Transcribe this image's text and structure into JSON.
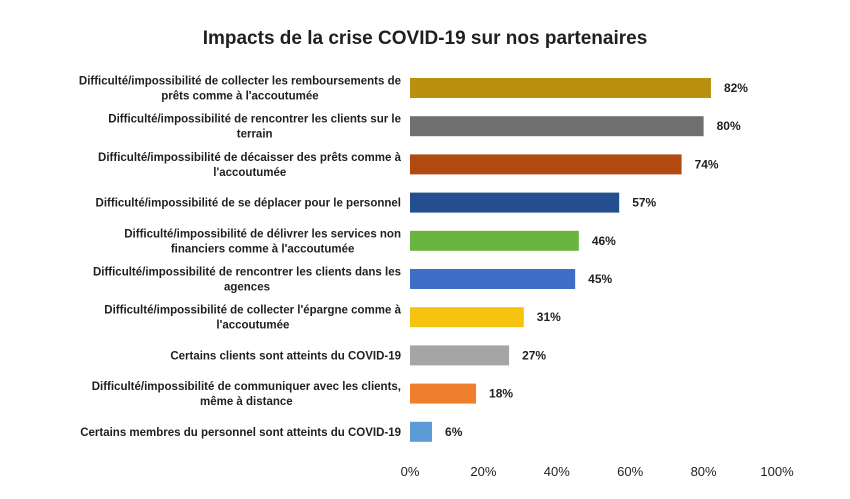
{
  "chart_data": {
    "type": "bar",
    "orientation": "horizontal",
    "title": "Impacts de la crise COVID-19 sur nos partenaires",
    "categories": [
      [
        "Difficulté/impossibilité de collecter les remboursements de",
        "prêts comme à l'accoutumée"
      ],
      [
        "Difficulté/impossibilité de rencontrer les clients sur le",
        "terrain"
      ],
      [
        "Difficulté/impossibilité de décaisser des prêts comme à",
        "l'accoutumée"
      ],
      [
        "Difficulté/impossibilité de se déplacer pour le personnel"
      ],
      [
        "Difficulté/impossibilité de délivrer les services non",
        "financiers comme à l'accoutumée"
      ],
      [
        "Difficulté/impossibilité de rencontrer les clients dans les",
        "agences"
      ],
      [
        "Difficulté/impossibilité de collecter l'épargne comme à",
        "l'accoutumée"
      ],
      [
        "Certains clients sont atteints du COVID-19"
      ],
      [
        "Difficulté/impossibilité de communiquer avec les clients,",
        "même à distance"
      ],
      [
        "Certains membres du personnel sont atteints du COVID-19"
      ]
    ],
    "values": [
      82,
      80,
      74,
      57,
      46,
      45,
      31,
      27,
      18,
      6
    ],
    "value_labels": [
      "82%",
      "80%",
      "74%",
      "57%",
      "46%",
      "45%",
      "31%",
      "27%",
      "18%",
      "6%"
    ],
    "colors": [
      "#b8900d",
      "#6f6f6f",
      "#b04a10",
      "#244f8e",
      "#6ab540",
      "#3e6fc6",
      "#f5c20f",
      "#a5a5a5",
      "#ef7f2c",
      "#5b9bd5"
    ],
    "xlim": [
      0,
      100
    ],
    "xticks": [
      "0%",
      "20%",
      "40%",
      "60%",
      "80%",
      "100%"
    ],
    "grid": false,
    "legend": "none"
  }
}
